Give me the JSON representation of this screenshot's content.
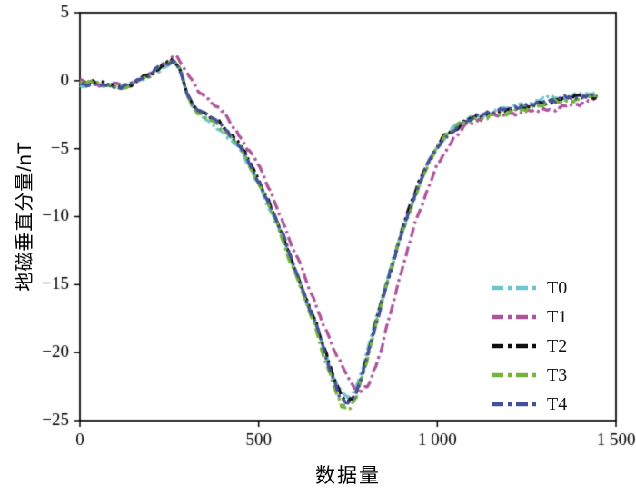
{
  "figure": {
    "background": "#ffffff",
    "frame_color": "#000000"
  },
  "chart_data": {
    "type": "line",
    "title": "",
    "xlabel": "数据量",
    "ylabel": "地磁垂直分量/nT",
    "xlim": [
      0,
      1500
    ],
    "ylim": [
      -25,
      5
    ],
    "grid": false,
    "legend_position": "lower-right-inside",
    "line_style": "dash-dot",
    "ticks": {
      "x": [
        {
          "v": 0,
          "label": "0"
        },
        {
          "v": 500,
          "label": "500"
        },
        {
          "v": 1000,
          "label": "1 000"
        },
        {
          "v": 1500,
          "label": "1 500"
        }
      ],
      "y": [
        {
          "v": 5,
          "label": "5"
        },
        {
          "v": 0,
          "label": "0"
        },
        {
          "v": -5,
          "label": "−5"
        },
        {
          "v": -10,
          "label": "−10"
        },
        {
          "v": -15,
          "label": "−15"
        },
        {
          "v": -20,
          "label": "−20"
        },
        {
          "v": -25,
          "label": "−25"
        }
      ]
    },
    "series": [
      {
        "name": "T0",
        "color": "#6fc6ce",
        "points": [
          [
            0,
            -0.25
          ],
          [
            40,
            -0.2
          ],
          [
            80,
            -0.4
          ],
          [
            120,
            -0.5
          ],
          [
            160,
            -0.15
          ],
          [
            200,
            0.45
          ],
          [
            235,
            1.15
          ],
          [
            260,
            1.5
          ],
          [
            280,
            0.8
          ],
          [
            300,
            -1.0
          ],
          [
            315,
            -2.0
          ],
          [
            335,
            -2.5
          ],
          [
            360,
            -2.95
          ],
          [
            390,
            -3.55
          ],
          [
            420,
            -4.4
          ],
          [
            450,
            -5.3
          ],
          [
            480,
            -6.6
          ],
          [
            510,
            -8.1
          ],
          [
            540,
            -9.9
          ],
          [
            570,
            -11.8
          ],
          [
            600,
            -13.9
          ],
          [
            630,
            -16.0
          ],
          [
            660,
            -17.9
          ],
          [
            690,
            -20.4
          ],
          [
            710,
            -22.0
          ],
          [
            730,
            -23.1
          ],
          [
            750,
            -23.4
          ],
          [
            770,
            -22.9
          ],
          [
            790,
            -21.4
          ],
          [
            815,
            -19.0
          ],
          [
            840,
            -16.5
          ],
          [
            870,
            -13.7
          ],
          [
            900,
            -11.1
          ],
          [
            930,
            -8.8
          ],
          [
            960,
            -6.8
          ],
          [
            990,
            -5.2
          ],
          [
            1015,
            -4.2
          ],
          [
            1040,
            -3.5
          ],
          [
            1070,
            -3.0
          ],
          [
            1100,
            -2.7
          ],
          [
            1140,
            -2.35
          ],
          [
            1180,
            -2.1
          ],
          [
            1220,
            -1.9
          ],
          [
            1260,
            -1.65
          ],
          [
            1300,
            -1.4
          ],
          [
            1340,
            -1.2
          ],
          [
            1380,
            -1.0
          ],
          [
            1420,
            -0.85
          ],
          [
            1450,
            -0.75
          ]
        ]
      },
      {
        "name": "T1",
        "color": "#ae549c",
        "points": [
          [
            0,
            -0.1
          ],
          [
            40,
            -0.1
          ],
          [
            80,
            -0.3
          ],
          [
            120,
            -0.4
          ],
          [
            160,
            0.0
          ],
          [
            200,
            0.6
          ],
          [
            240,
            1.3
          ],
          [
            270,
            1.7
          ],
          [
            290,
            1.2
          ],
          [
            310,
            0.2
          ],
          [
            330,
            -0.6
          ],
          [
            355,
            -1.2
          ],
          [
            385,
            -2.0
          ],
          [
            415,
            -2.9
          ],
          [
            445,
            -3.9
          ],
          [
            475,
            -5.1
          ],
          [
            505,
            -6.5
          ],
          [
            535,
            -8.2
          ],
          [
            565,
            -10.1
          ],
          [
            595,
            -12.2
          ],
          [
            625,
            -14.2
          ],
          [
            655,
            -16.2
          ],
          [
            685,
            -18.2
          ],
          [
            715,
            -20.2
          ],
          [
            745,
            -21.7
          ],
          [
            770,
            -22.5
          ],
          [
            790,
            -22.7
          ],
          [
            810,
            -22.2
          ],
          [
            830,
            -20.8
          ],
          [
            855,
            -18.6
          ],
          [
            880,
            -16.0
          ],
          [
            905,
            -13.5
          ],
          [
            930,
            -11.2
          ],
          [
            955,
            -9.2
          ],
          [
            980,
            -7.4
          ],
          [
            1005,
            -5.9
          ],
          [
            1030,
            -4.8
          ],
          [
            1055,
            -4.0
          ],
          [
            1080,
            -3.4
          ],
          [
            1110,
            -3.0
          ],
          [
            1140,
            -2.75
          ],
          [
            1180,
            -2.5
          ],
          [
            1220,
            -2.35
          ],
          [
            1260,
            -2.2
          ],
          [
            1300,
            -2.05
          ],
          [
            1340,
            -1.9
          ],
          [
            1380,
            -1.7
          ],
          [
            1420,
            -1.5
          ],
          [
            1450,
            -1.4
          ]
        ]
      },
      {
        "name": "T2",
        "color": "#111111",
        "points": [
          [
            0,
            -0.2
          ],
          [
            40,
            -0.15
          ],
          [
            80,
            -0.35
          ],
          [
            120,
            -0.45
          ],
          [
            160,
            -0.1
          ],
          [
            200,
            0.5
          ],
          [
            235,
            1.2
          ],
          [
            260,
            1.55
          ],
          [
            280,
            0.9
          ],
          [
            300,
            -0.9
          ],
          [
            315,
            -1.9
          ],
          [
            335,
            -2.3
          ],
          [
            360,
            -2.7
          ],
          [
            390,
            -3.2
          ],
          [
            420,
            -4.0
          ],
          [
            450,
            -4.9
          ],
          [
            480,
            -6.3
          ],
          [
            510,
            -7.9
          ],
          [
            540,
            -9.7
          ],
          [
            570,
            -11.6
          ],
          [
            600,
            -13.7
          ],
          [
            630,
            -15.9
          ],
          [
            660,
            -17.8
          ],
          [
            690,
            -20.3
          ],
          [
            710,
            -21.9
          ],
          [
            730,
            -23.2
          ],
          [
            750,
            -23.7
          ],
          [
            770,
            -23.1
          ],
          [
            790,
            -21.6
          ],
          [
            815,
            -19.2
          ],
          [
            840,
            -16.7
          ],
          [
            870,
            -13.8
          ],
          [
            900,
            -11.2
          ],
          [
            930,
            -8.9
          ],
          [
            960,
            -6.9
          ],
          [
            990,
            -5.3
          ],
          [
            1015,
            -4.3
          ],
          [
            1040,
            -3.6
          ],
          [
            1070,
            -3.1
          ],
          [
            1100,
            -2.8
          ],
          [
            1140,
            -2.5
          ],
          [
            1180,
            -2.25
          ],
          [
            1220,
            -2.05
          ],
          [
            1260,
            -1.85
          ],
          [
            1300,
            -1.65
          ],
          [
            1340,
            -1.45
          ],
          [
            1380,
            -1.25
          ],
          [
            1420,
            -1.1
          ],
          [
            1450,
            -1.0
          ]
        ]
      },
      {
        "name": "T3",
        "color": "#76b23e",
        "points": [
          [
            0,
            -0.2
          ],
          [
            40,
            -0.2
          ],
          [
            80,
            -0.35
          ],
          [
            120,
            -0.5
          ],
          [
            160,
            -0.1
          ],
          [
            200,
            0.5
          ],
          [
            235,
            1.2
          ],
          [
            260,
            1.55
          ],
          [
            280,
            0.85
          ],
          [
            300,
            -1.0
          ],
          [
            315,
            -2.0
          ],
          [
            335,
            -2.4
          ],
          [
            360,
            -2.8
          ],
          [
            390,
            -3.3
          ],
          [
            420,
            -4.1
          ],
          [
            450,
            -5.0
          ],
          [
            480,
            -6.4
          ],
          [
            510,
            -8.0
          ],
          [
            540,
            -9.9
          ],
          [
            570,
            -11.9
          ],
          [
            600,
            -14.1
          ],
          [
            630,
            -16.3
          ],
          [
            660,
            -18.3
          ],
          [
            690,
            -20.9
          ],
          [
            710,
            -22.5
          ],
          [
            730,
            -23.9
          ],
          [
            750,
            -24.2
          ],
          [
            770,
            -23.6
          ],
          [
            790,
            -21.9
          ],
          [
            815,
            -19.4
          ],
          [
            840,
            -16.9
          ],
          [
            870,
            -13.9
          ],
          [
            900,
            -11.3
          ],
          [
            930,
            -9.0
          ],
          [
            960,
            -7.0
          ],
          [
            990,
            -5.4
          ],
          [
            1015,
            -4.35
          ],
          [
            1040,
            -3.65
          ],
          [
            1070,
            -3.15
          ],
          [
            1100,
            -2.85
          ],
          [
            1140,
            -2.55
          ],
          [
            1180,
            -2.3
          ],
          [
            1220,
            -2.1
          ],
          [
            1260,
            -1.9
          ],
          [
            1300,
            -1.7
          ],
          [
            1340,
            -1.5
          ],
          [
            1380,
            -1.3
          ],
          [
            1420,
            -1.15
          ],
          [
            1450,
            -1.05
          ]
        ]
      },
      {
        "name": "T4",
        "color": "#44509e",
        "points": [
          [
            0,
            -0.2
          ],
          [
            40,
            -0.15
          ],
          [
            80,
            -0.3
          ],
          [
            120,
            -0.45
          ],
          [
            160,
            -0.05
          ],
          [
            200,
            0.55
          ],
          [
            235,
            1.25
          ],
          [
            260,
            1.6
          ],
          [
            280,
            0.95
          ],
          [
            300,
            -0.85
          ],
          [
            315,
            -1.85
          ],
          [
            335,
            -2.25
          ],
          [
            360,
            -2.65
          ],
          [
            390,
            -3.15
          ],
          [
            420,
            -3.95
          ],
          [
            450,
            -4.85
          ],
          [
            480,
            -6.25
          ],
          [
            510,
            -7.85
          ],
          [
            540,
            -9.65
          ],
          [
            570,
            -11.55
          ],
          [
            600,
            -13.75
          ],
          [
            630,
            -15.95
          ],
          [
            660,
            -17.9
          ],
          [
            690,
            -20.5
          ],
          [
            710,
            -22.1
          ],
          [
            730,
            -23.4
          ],
          [
            750,
            -23.8
          ],
          [
            770,
            -23.3
          ],
          [
            790,
            -21.7
          ],
          [
            815,
            -19.3
          ],
          [
            840,
            -16.8
          ],
          [
            870,
            -13.85
          ],
          [
            900,
            -11.25
          ],
          [
            930,
            -8.95
          ],
          [
            960,
            -6.95
          ],
          [
            990,
            -5.35
          ],
          [
            1015,
            -4.3
          ],
          [
            1040,
            -3.6
          ],
          [
            1070,
            -3.1
          ],
          [
            1100,
            -2.8
          ],
          [
            1140,
            -2.5
          ],
          [
            1180,
            -2.25
          ],
          [
            1220,
            -2.0
          ],
          [
            1260,
            -1.8
          ],
          [
            1300,
            -1.6
          ],
          [
            1340,
            -1.4
          ],
          [
            1380,
            -1.2
          ],
          [
            1420,
            -1.05
          ],
          [
            1450,
            -0.95
          ]
        ]
      }
    ]
  }
}
